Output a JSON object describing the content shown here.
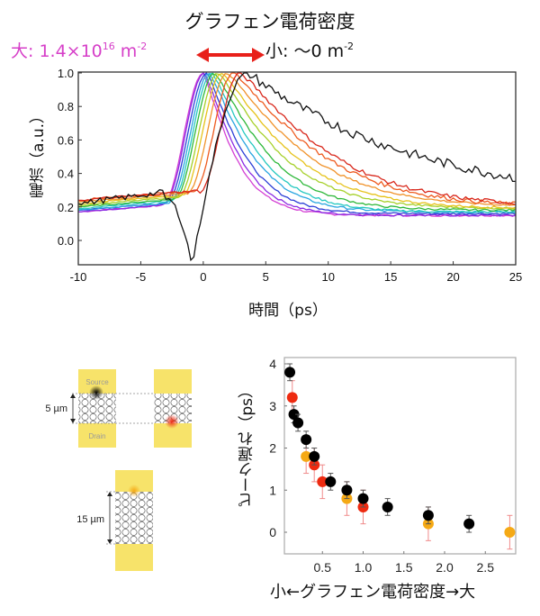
{
  "header": {
    "title": "グラフェン電荷密度",
    "big_label": "大: 1.4×10",
    "big_exp": "16",
    "big_unit": " m",
    "big_unit_exp": "-2",
    "small_label": "小: ～0 m",
    "small_unit_exp": "-2",
    "arrow_color": "#e8201a"
  },
  "chart_data": [
    {
      "type": "line",
      "title": "",
      "xlabel": "時間（ps）",
      "ylabel": "電流（a.u.）",
      "xlim": [
        -10,
        25
      ],
      "ylim": [
        -0.15,
        1.0
      ],
      "xticks": [
        "-10",
        "-5",
        "0",
        "5",
        "10",
        "15",
        "20",
        "25"
      ],
      "yticks": [
        "0.0",
        "0.2",
        "0.4",
        "0.6",
        "0.8",
        "1.0"
      ],
      "grid": false,
      "legend": "none",
      "series": [
        {
          "name": "magenta",
          "color": "#d43fd4",
          "peak_x": 0.0,
          "base": 0.17,
          "tail": 0.15,
          "decay": 4.2
        },
        {
          "name": "violet",
          "color": "#8a2be2",
          "peak_x": 0.1,
          "base": 0.17,
          "tail": 0.15,
          "decay": 4.6
        },
        {
          "name": "blue",
          "color": "#2b3fd6",
          "peak_x": 0.3,
          "base": 0.18,
          "tail": 0.16,
          "decay": 5.0
        },
        {
          "name": "sky-blue",
          "color": "#2aa6e0",
          "peak_x": 0.5,
          "base": 0.18,
          "tail": 0.17,
          "decay": 5.6
        },
        {
          "name": "cyan",
          "color": "#25c8c0",
          "peak_x": 0.7,
          "base": 0.19,
          "tail": 0.17,
          "decay": 6.2
        },
        {
          "name": "green",
          "color": "#2eb83a",
          "peak_x": 0.9,
          "base": 0.2,
          "tail": 0.18,
          "decay": 7.0
        },
        {
          "name": "yellow-green",
          "color": "#a6d02a",
          "peak_x": 1.2,
          "base": 0.21,
          "tail": 0.19,
          "decay": 8.0
        },
        {
          "name": "yellow",
          "color": "#e6c21a",
          "peak_x": 1.5,
          "base": 0.22,
          "tail": 0.19,
          "decay": 9.0
        },
        {
          "name": "orange",
          "color": "#f0922a",
          "peak_x": 1.9,
          "base": 0.23,
          "tail": 0.2,
          "decay": 10.0
        },
        {
          "name": "red-orange",
          "color": "#ee5a1e",
          "peak_x": 2.4,
          "base": 0.24,
          "tail": 0.2,
          "decay": 11.0
        },
        {
          "name": "red",
          "color": "#d8261a",
          "peak_x": 2.9,
          "base": 0.24,
          "tail": 0.2,
          "decay": 11.5
        },
        {
          "name": "black",
          "color": "#111111",
          "peak_x": 3.6,
          "base": 0.22,
          "tail": 0.2,
          "decay": 12.0,
          "dip_x": -0.9,
          "dip_y": -0.15
        }
      ]
    },
    {
      "type": "scatter",
      "title": "",
      "xlabel": "小←グラフェン電荷密度→大",
      "ylabel": "ピーク遅れ（ps）",
      "xlim": [
        0.03,
        2.9
      ],
      "ylim": [
        -0.5,
        4.15
      ],
      "xticks": [
        "0.5",
        "1.0",
        "1.5",
        "2.0",
        "2.5"
      ],
      "yticks": [
        "0",
        "1",
        "2",
        "3",
        "4"
      ],
      "grid": false,
      "legend": "none",
      "series": [
        {
          "name": "5 µm (black)",
          "color": "#000000",
          "errcolor": "#555555",
          "points": [
            [
              0.1,
              3.8,
              0.2
            ],
            [
              0.15,
              2.8,
              0.2
            ],
            [
              0.2,
              2.6,
              0.2
            ],
            [
              0.3,
              2.2,
              0.2
            ],
            [
              0.4,
              1.8,
              0.2
            ],
            [
              0.6,
              1.2,
              0.2
            ],
            [
              0.8,
              1.0,
              0.2
            ],
            [
              1.0,
              0.8,
              0.2
            ],
            [
              1.3,
              0.6,
              0.2
            ],
            [
              1.8,
              0.4,
              0.2
            ],
            [
              2.3,
              0.2,
              0.2
            ]
          ]
        },
        {
          "name": "5 µm (red)",
          "color": "#ee2a10",
          "errcolor": "#f08a8a",
          "points": [
            [
              0.13,
              3.2,
              0.4
            ],
            [
              0.4,
              1.6,
              0.4
            ],
            [
              0.5,
              1.2,
              0.4
            ],
            [
              1.0,
              0.6,
              0.4
            ]
          ]
        },
        {
          "name": "15 µm (orange)",
          "color": "#f5a915",
          "errcolor": "#f08a8a",
          "points": [
            [
              0.3,
              1.8,
              0.4
            ],
            [
              0.8,
              0.8,
              0.4
            ],
            [
              1.8,
              0.2,
              0.4
            ],
            [
              2.8,
              0.0,
              0.4
            ]
          ]
        }
      ]
    }
  ],
  "diagram": {
    "source_label": "Source",
    "drain_label": "Drain",
    "gap_small": "5 µm",
    "gap_large": "15 µm",
    "electrode_color": "#f7e36a",
    "spot_colors": [
      "#000000",
      "#ee2a10",
      "#f5a915"
    ]
  }
}
